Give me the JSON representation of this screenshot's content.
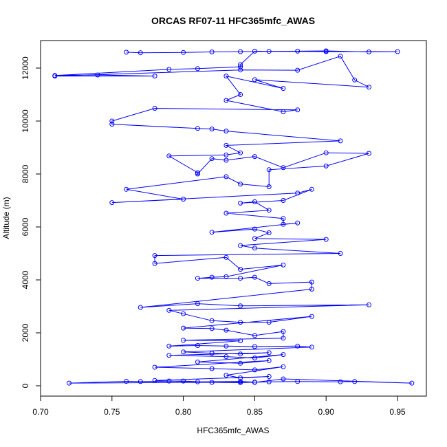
{
  "chart_data": {
    "type": "line",
    "title": "ORCAS RF07-11 HFC365mfc_AWAS",
    "xlabel": "HFC365mfc_AWAS",
    "ylabel": "Altitude (m)",
    "xlim": [
      0.7,
      0.96
    ],
    "ylim": [
      0,
      12700
    ],
    "x_ticks": [
      "0.70",
      "0.75",
      "0.80",
      "0.85",
      "0.90",
      "0.95"
    ],
    "y_ticks": [
      "0",
      "2000",
      "4000",
      "6000",
      "8000",
      "10000",
      "12000"
    ],
    "grid": false,
    "legend": "none",
    "series_color": "#0000ff",
    "markers": "open-circle",
    "points": [
      [
        0.76,
        12600
      ],
      [
        0.77,
        12580
      ],
      [
        0.8,
        12590
      ],
      [
        0.82,
        12610
      ],
      [
        0.84,
        12620
      ],
      [
        0.86,
        12630
      ],
      [
        0.88,
        12640
      ],
      [
        0.9,
        12650
      ],
      [
        0.93,
        12610
      ],
      [
        0.95,
        12620
      ],
      [
        0.9,
        12620
      ],
      [
        0.85,
        12640
      ],
      [
        0.84,
        12130
      ],
      [
        0.84,
        12050
      ],
      [
        0.81,
        11980
      ],
      [
        0.79,
        11950
      ],
      [
        0.71,
        11720
      ],
      [
        0.74,
        11740
      ],
      [
        0.78,
        11700
      ],
      [
        0.71,
        11700
      ],
      [
        0.84,
        11930
      ],
      [
        0.88,
        11920
      ],
      [
        0.91,
        12450
      ],
      [
        0.92,
        11550
      ],
      [
        0.93,
        11280
      ],
      [
        0.85,
        11560
      ],
      [
        0.87,
        11230
      ],
      [
        0.83,
        11700
      ],
      [
        0.84,
        11000
      ],
      [
        0.83,
        10780
      ],
      [
        0.87,
        10350
      ],
      [
        0.88,
        10420
      ],
      [
        0.78,
        10480
      ],
      [
        0.75,
        10000
      ],
      [
        0.75,
        9880
      ],
      [
        0.81,
        9720
      ],
      [
        0.82,
        9700
      ],
      [
        0.83,
        9620
      ],
      [
        0.91,
        9250
      ],
      [
        0.83,
        9080
      ],
      [
        0.84,
        8800
      ],
      [
        0.83,
        8720
      ],
      [
        0.79,
        8680
      ],
      [
        0.81,
        8050
      ],
      [
        0.81,
        8000
      ],
      [
        0.82,
        8580
      ],
      [
        0.83,
        8520
      ],
      [
        0.85,
        8660
      ],
      [
        0.87,
        8240
      ],
      [
        0.9,
        8800
      ],
      [
        0.93,
        8780
      ],
      [
        0.9,
        8300
      ],
      [
        0.86,
        8160
      ],
      [
        0.86,
        7520
      ],
      [
        0.84,
        7620
      ],
      [
        0.83,
        7900
      ],
      [
        0.76,
        7420
      ],
      [
        0.8,
        7050
      ],
      [
        0.75,
        6920
      ],
      [
        0.88,
        7280
      ],
      [
        0.89,
        7420
      ],
      [
        0.87,
        7000
      ],
      [
        0.84,
        6900
      ],
      [
        0.85,
        6950
      ],
      [
        0.86,
        6630
      ],
      [
        0.83,
        6520
      ],
      [
        0.87,
        6320
      ],
      [
        0.87,
        6100
      ],
      [
        0.88,
        6150
      ],
      [
        0.82,
        5800
      ],
      [
        0.85,
        5920
      ],
      [
        0.86,
        5780
      ],
      [
        0.85,
        5560
      ],
      [
        0.9,
        5530
      ],
      [
        0.84,
        5300
      ],
      [
        0.85,
        5200
      ],
      [
        0.91,
        5000
      ],
      [
        0.78,
        4920
      ],
      [
        0.78,
        4620
      ],
      [
        0.83,
        4850
      ],
      [
        0.84,
        4400
      ],
      [
        0.87,
        4560
      ],
      [
        0.83,
        4120
      ],
      [
        0.82,
        4100
      ],
      [
        0.81,
        4060
      ],
      [
        0.84,
        4060
      ],
      [
        0.85,
        4100
      ],
      [
        0.86,
        3860
      ],
      [
        0.89,
        3920
      ],
      [
        0.89,
        3650
      ],
      [
        0.77,
        2960
      ],
      [
        0.81,
        3100
      ],
      [
        0.84,
        3020
      ],
      [
        0.93,
        3060
      ],
      [
        0.79,
        2850
      ],
      [
        0.8,
        2720
      ],
      [
        0.82,
        2460
      ],
      [
        0.84,
        2400
      ],
      [
        0.86,
        2400
      ],
      [
        0.89,
        2620
      ],
      [
        0.8,
        2180
      ],
      [
        0.82,
        2160
      ],
      [
        0.83,
        2100
      ],
      [
        0.85,
        1900
      ],
      [
        0.87,
        2050
      ],
      [
        0.87,
        1800
      ],
      [
        0.8,
        1720
      ],
      [
        0.84,
        1700
      ],
      [
        0.79,
        1500
      ],
      [
        0.81,
        1520
      ],
      [
        0.83,
        1500
      ],
      [
        0.85,
        1480
      ],
      [
        0.88,
        1500
      ],
      [
        0.89,
        1460
      ],
      [
        0.8,
        1280
      ],
      [
        0.82,
        1230
      ],
      [
        0.84,
        1200
      ],
      [
        0.86,
        1250
      ],
      [
        0.79,
        1150
      ],
      [
        0.83,
        1100
      ],
      [
        0.85,
        1050
      ],
      [
        0.87,
        1180
      ],
      [
        0.81,
        900
      ],
      [
        0.84,
        850
      ],
      [
        0.86,
        950
      ],
      [
        0.78,
        700
      ],
      [
        0.82,
        650
      ],
      [
        0.85,
        600
      ],
      [
        0.87,
        720
      ],
      [
        0.83,
        400
      ],
      [
        0.84,
        300
      ],
      [
        0.86,
        350
      ],
      [
        0.78,
        200
      ],
      [
        0.79,
        180
      ],
      [
        0.81,
        150
      ],
      [
        0.84,
        160
      ],
      [
        0.85,
        140
      ],
      [
        0.72,
        100
      ],
      [
        0.76,
        170
      ],
      [
        0.77,
        160
      ],
      [
        0.8,
        180
      ],
      [
        0.82,
        130
      ],
      [
        0.84,
        120
      ],
      [
        0.86,
        150
      ],
      [
        0.88,
        160
      ],
      [
        0.91,
        150
      ],
      [
        0.92,
        160
      ],
      [
        0.96,
        100
      ],
      [
        0.87,
        260
      ],
      [
        0.85,
        130
      ]
    ]
  }
}
